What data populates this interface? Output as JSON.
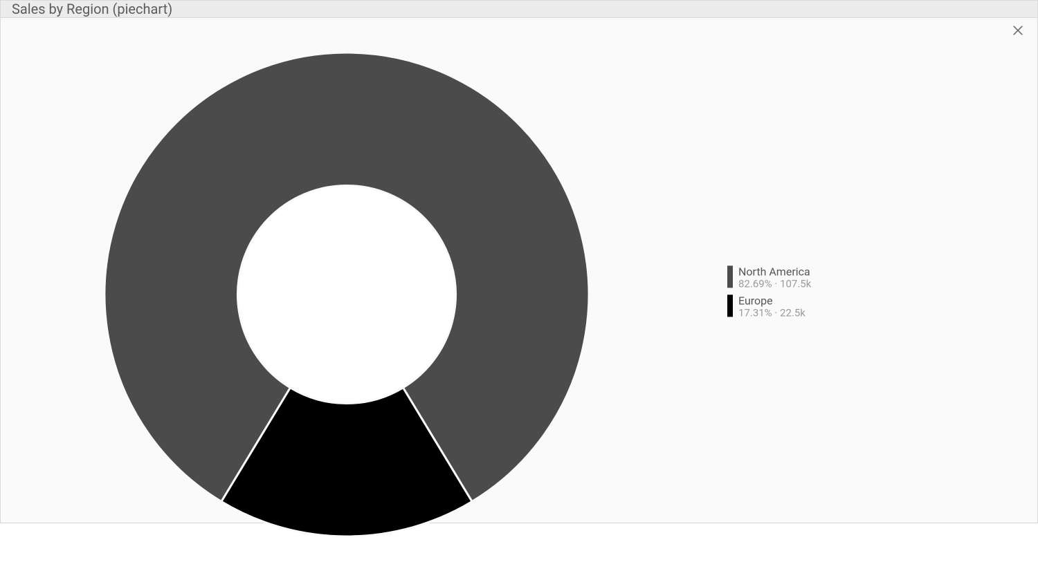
{
  "panel": {
    "title": "Sales by Region (piechart)"
  },
  "chart": {
    "type": "donut",
    "inner_radius_ratio": 0.45,
    "outer_radius": 350,
    "stroke_color": "#fafafa",
    "stroke_width": 3,
    "background_color": "#fafafa",
    "center_fill": "#ffffff",
    "start_angle_deg": 180,
    "slices": [
      {
        "label": "North America",
        "percent": 82.69,
        "value_display": "107.5k",
        "color": "#4b4b4b"
      },
      {
        "label": "Europe",
        "percent": 17.31,
        "value_display": "22.5k",
        "color": "#000000"
      }
    ]
  },
  "legend": {
    "label_color": "#555555",
    "label_fontsize": 16,
    "sub_color": "#9a9a9a",
    "sub_fontsize": 15,
    "swatch_width": 8,
    "swatch_height": 32,
    "separator": " · "
  },
  "close_icon_color": "#6e6e6e"
}
